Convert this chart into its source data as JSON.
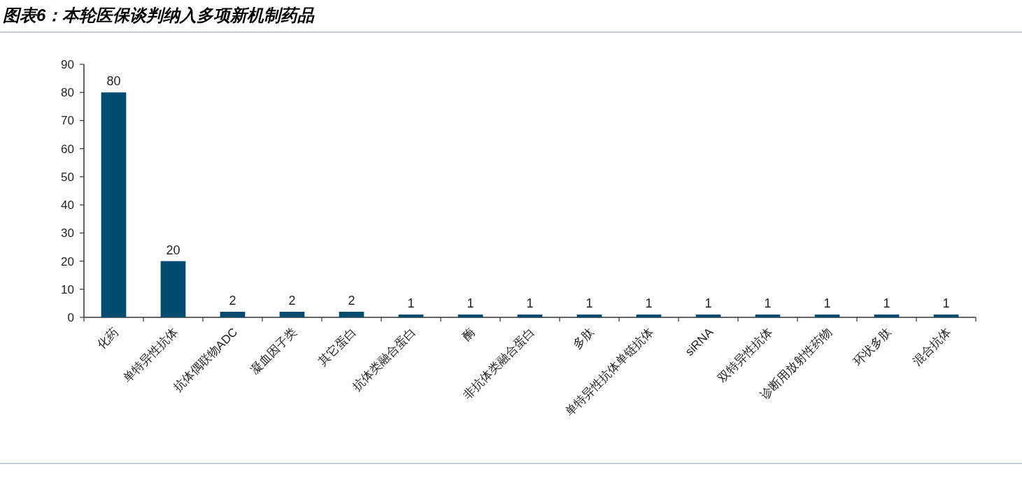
{
  "chart_data": {
    "type": "bar",
    "title": "图表6：本轮医保谈判纳入多项新机制药品",
    "categories": [
      "化药",
      "单特异性抗体",
      "抗体偶联物ADC",
      "凝血因子类",
      "其它蛋白",
      "抗体类融合蛋白",
      "酶",
      "非抗体类融合蛋白",
      "多肽",
      "单特异性抗体单链抗体",
      "siRNA",
      "双特异性抗体",
      "诊断用放射性药物",
      "环状多肽",
      "混合抗体"
    ],
    "values": [
      80,
      20,
      2,
      2,
      2,
      1,
      1,
      1,
      1,
      1,
      1,
      1,
      1,
      1,
      1
    ],
    "color": "#004b70",
    "ylim": [
      0,
      90
    ],
    "yticks": [
      0,
      10,
      20,
      30,
      40,
      50,
      60,
      70,
      80,
      90
    ],
    "data_labels": true
  }
}
